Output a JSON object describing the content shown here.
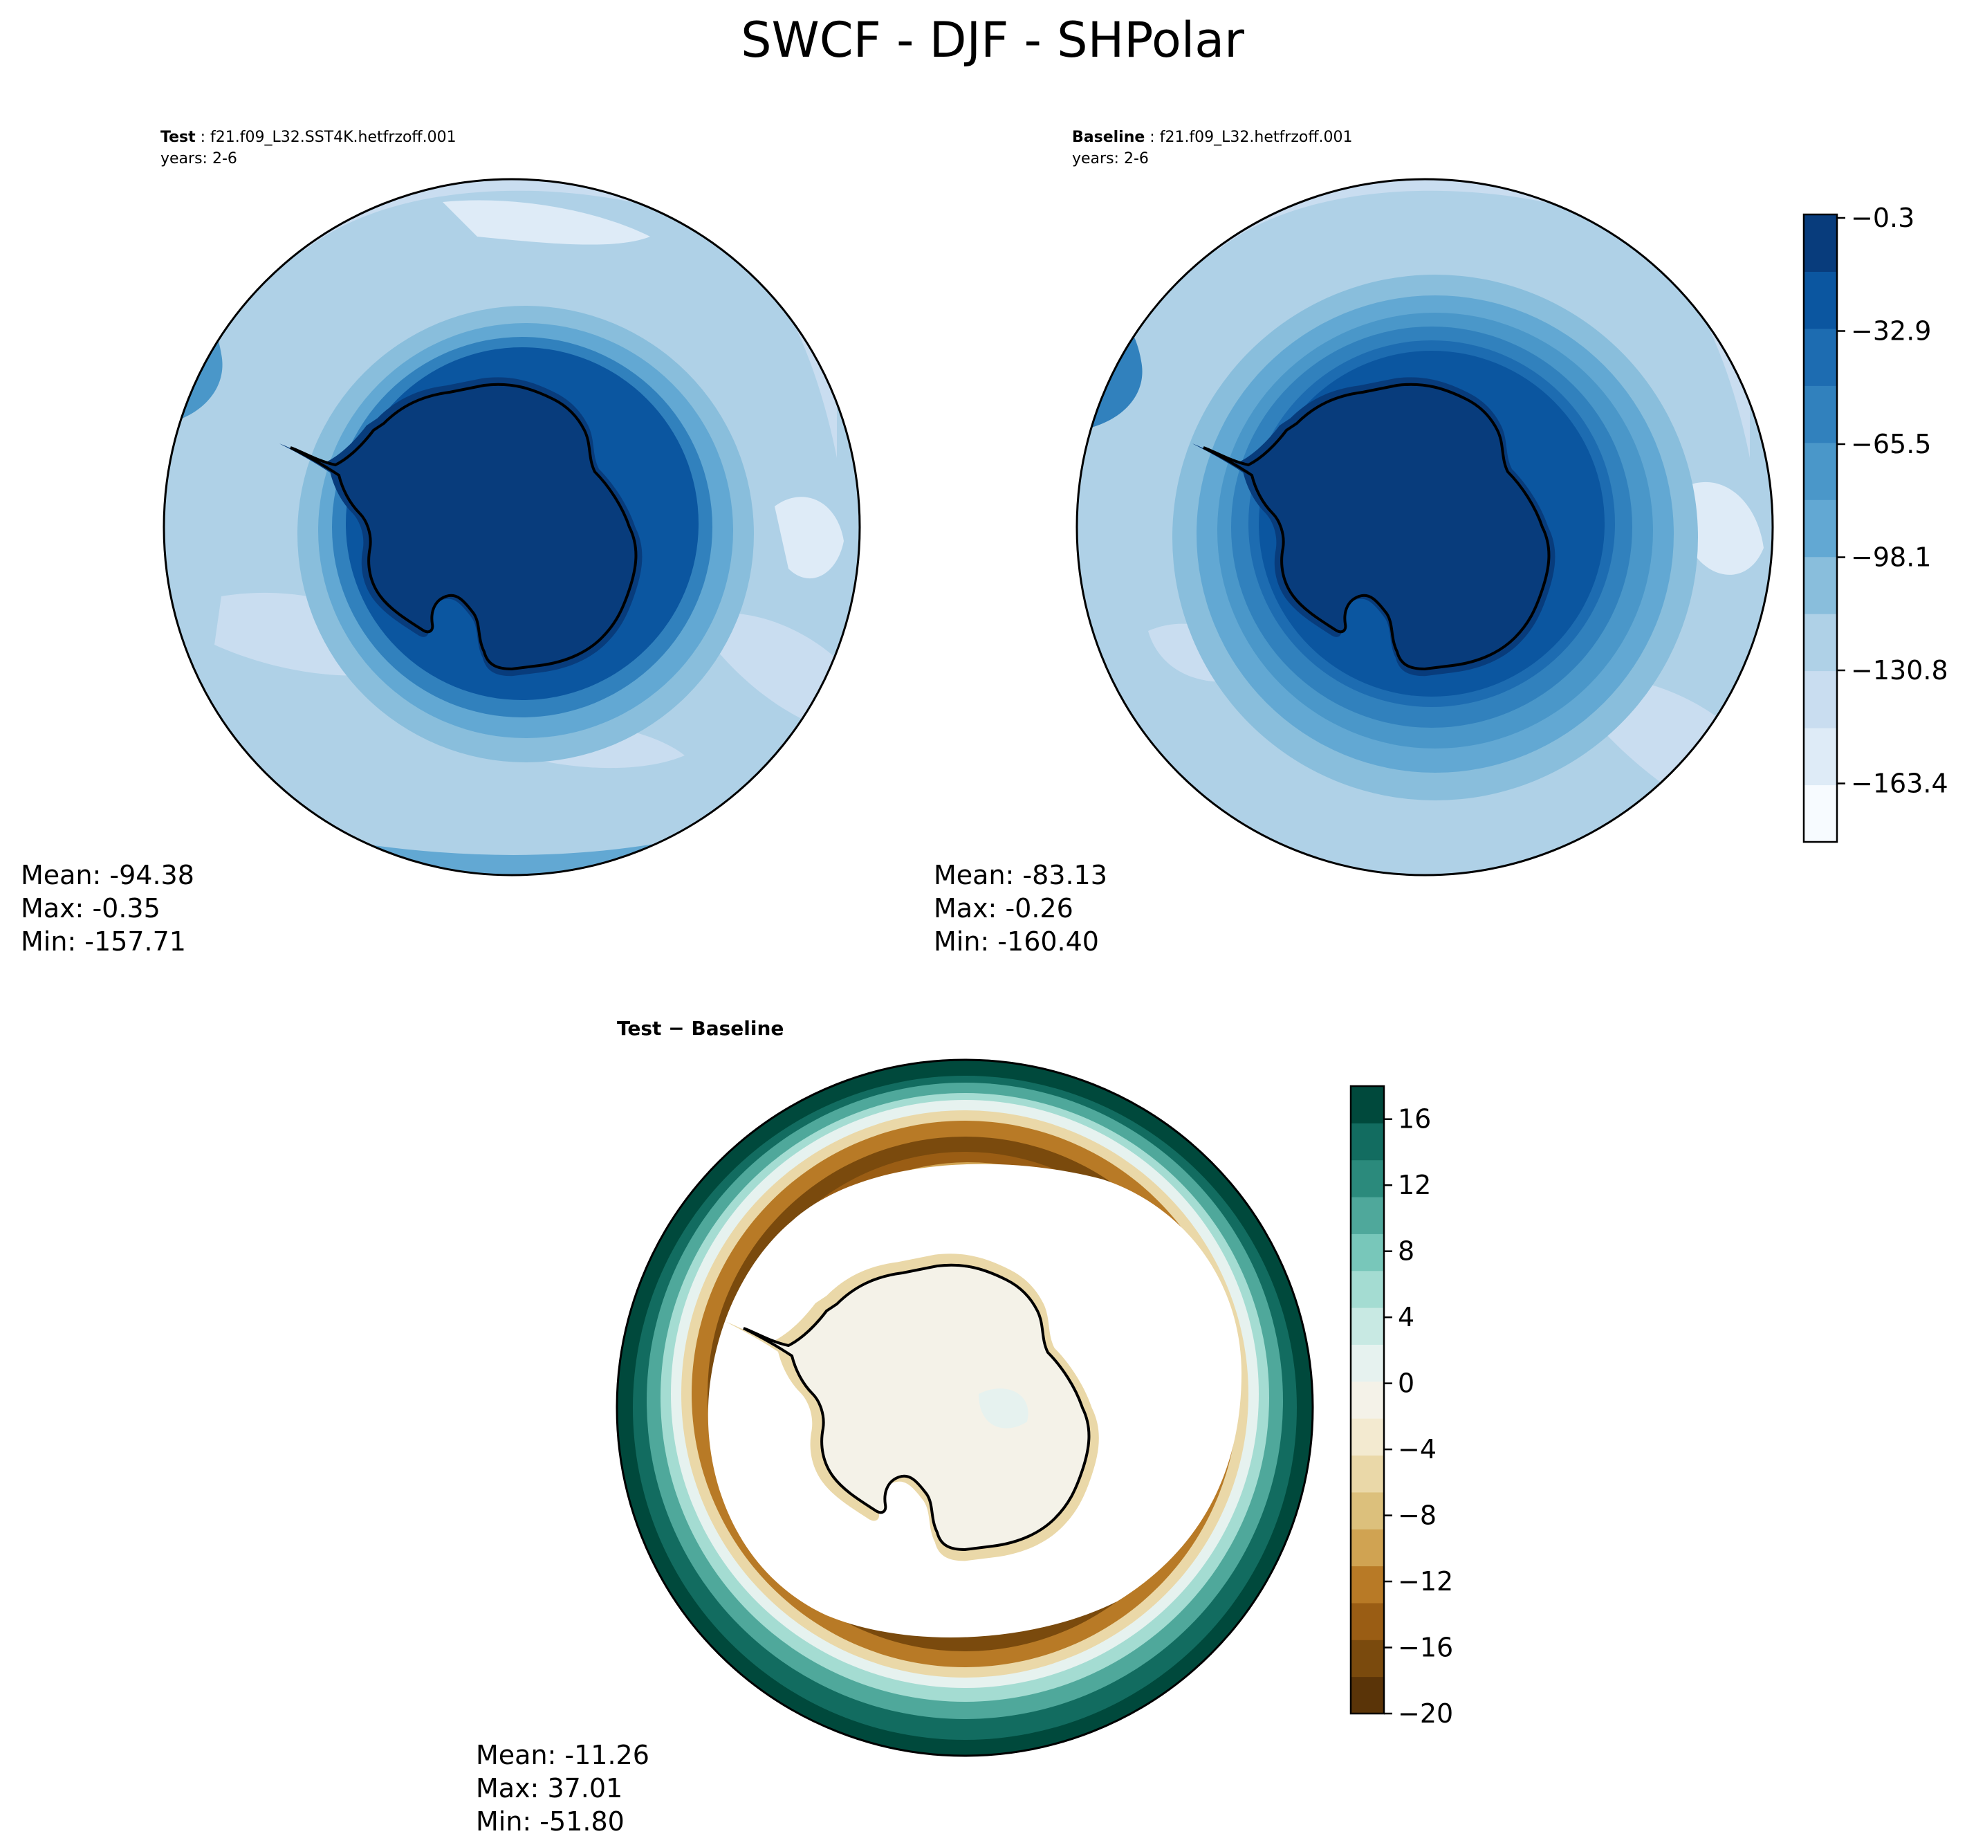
{
  "figure": {
    "title": "SWCF - DJF - SHPolar"
  },
  "panels": [
    {
      "id": "test",
      "header_label": "Test",
      "header_value": "f21.f09_L32.SST4K.hetfrzoff.001",
      "years_line": "years: 2-6",
      "stats": {
        "mean": "Mean: -94.38",
        "max": "Max: -0.35",
        "min": "Min: -157.71"
      }
    },
    {
      "id": "baseline",
      "header_label": "Baseline",
      "header_value": "f21.f09_L32.hetfrzoff.001",
      "years_line": "years: 2-6",
      "stats": {
        "mean": "Mean: -83.13",
        "max": "Max: -0.26",
        "min": "Min: -160.40"
      }
    },
    {
      "id": "difference",
      "header_title": "Test − Baseline",
      "stats": {
        "mean": "Mean: -11.26",
        "max": "Max: 37.01",
        "min": "Min: -51.80"
      }
    }
  ],
  "colorbars": {
    "blues": {
      "tick_labels": [
        "−0.3",
        "−32.9",
        "−65.5",
        "−98.1",
        "−130.8",
        "−163.4"
      ],
      "band_colors": [
        "#f7fbff",
        "#deebf7",
        "#c9ddf0",
        "#afd1e7",
        "#89bedc",
        "#62a8d3",
        "#4a97c9",
        "#3181bd",
        "#1d6cb1",
        "#0b56a0",
        "#083c7c"
      ]
    },
    "brbg": {
      "tick_labels": [
        "16",
        "12",
        "8",
        "4",
        "0",
        "−4",
        "−8",
        "−12",
        "−16",
        "−20"
      ],
      "band_colors": [
        "#5a3408",
        "#7a4a0d",
        "#9a5d14",
        "#b87a26",
        "#d0a352",
        "#dcc07c",
        "#ead8a8",
        "#f3ead0",
        "#f4f2e8",
        "#e6f2ef",
        "#c8e9e3",
        "#a4dcd2",
        "#78c7ba",
        "#4fa89b",
        "#2b8a7c",
        "#126c60",
        "#00493c"
      ]
    }
  },
  "chart_data": [
    {
      "type": "heatmap",
      "title": "Test : f21.f09_L32.SST4K.hetfrzoff.001",
      "projection": "south polar stereographic",
      "variable": "SWCF",
      "season": "DJF",
      "stats": {
        "mean": -94.38,
        "max": -0.35,
        "min": -157.71
      },
      "color_range": [
        -163.4,
        -0.3
      ],
      "colormap": "Blues"
    },
    {
      "type": "heatmap",
      "title": "Baseline : f21.f09_L32.hetfrzoff.001",
      "projection": "south polar stereographic",
      "variable": "SWCF",
      "season": "DJF",
      "stats": {
        "mean": -83.13,
        "max": -0.26,
        "min": -160.4
      },
      "color_range": [
        -163.4,
        -0.3
      ],
      "colormap": "Blues"
    },
    {
      "type": "heatmap",
      "title": "Test − Baseline",
      "projection": "south polar stereographic",
      "variable": "SWCF",
      "season": "DJF",
      "stats": {
        "mean": -11.26,
        "max": 37.01,
        "min": -51.8
      },
      "color_range": [
        -20,
        18
      ],
      "colormap": "BrBG"
    }
  ]
}
